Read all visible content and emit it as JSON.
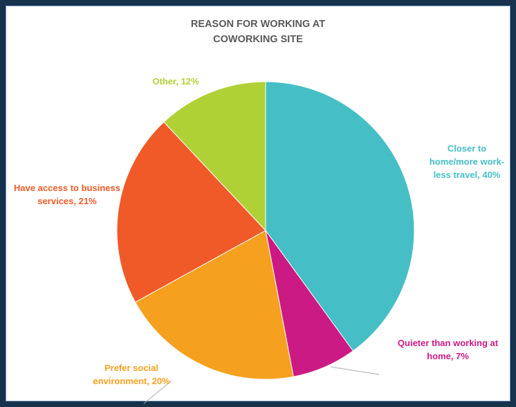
{
  "chart_data": {
    "type": "pie",
    "title": "REASON FOR WORKING AT COWORKING SITE",
    "categories": [
      "Closer to home/more work-less travel",
      "Quieter than working at home",
      "Prefer social environment",
      "Have access to business services",
      "Other"
    ],
    "values": [
      40,
      7,
      20,
      21,
      12
    ],
    "value_labels": [
      "Closer to home/more work-less travel, 40%",
      "Quieter than working at home, 7%",
      "Prefer social environment, 20%",
      "Have access to business services, 21%",
      "Other, 12%"
    ],
    "colors": [
      "#45bfc5",
      "#cc1a84",
      "#f5a01e",
      "#f05a28",
      "#b0d136"
    ]
  }
}
